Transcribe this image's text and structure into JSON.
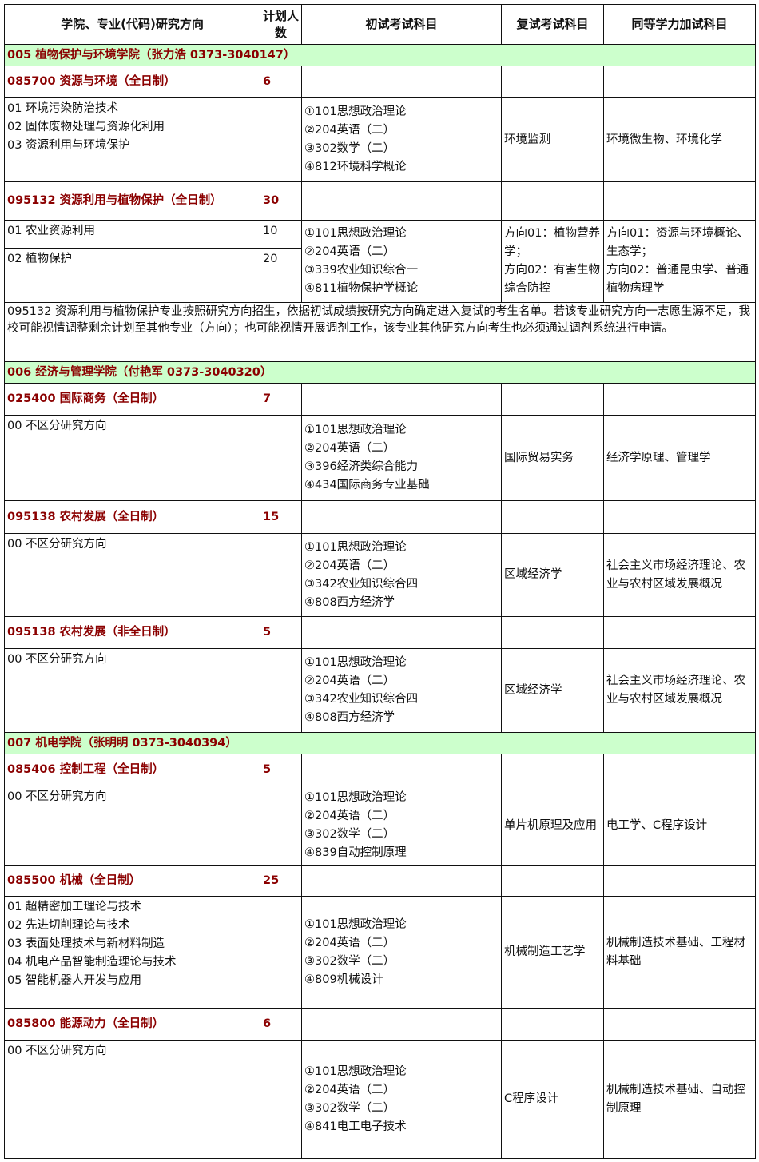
{
  "header": [
    "学院、专业(代码)研究方向",
    "计划人数",
    "初试考试科目",
    "复试考试科目",
    "同等学力加试科目"
  ],
  "colleges": [
    {
      "title": "005 植物保护与环境学院（张力浩 0373-3040147）",
      "majors": [
        {
          "title": "085700 资源与环境（全日制）",
          "plan": "6",
          "directions": [
            "01 环境污染防治技术",
            "02 固体废物处理与资源化利用",
            "03 资源利用与环境保护"
          ],
          "exams": [
            "①101思想政治理论",
            "②204英语（二）",
            "③302数学（二）",
            "④812环境科学概论"
          ],
          "retest": [
            "环境监测"
          ],
          "extra": [
            "环境微生物、环境化学"
          ]
        },
        {
          "title": "095132 资源利用与植物保护（全日制）",
          "plan": "30",
          "direction_rows": [
            {
              "name": "01 农业资源利用",
              "plan": "10"
            },
            {
              "name": "02 植物保护",
              "plan": "20"
            }
          ],
          "exams": [
            "①101思想政治理论",
            "②204英语（二）",
            "③339农业知识综合一",
            "④811植物保护学概论"
          ],
          "retest": [
            "方向01：植物营养学；",
            "方向02：有害生物综合防控"
          ],
          "extra": [
            "方向01：资源与环境概论、生态学；",
            "方向02：普通昆虫学、普通植物病理学"
          ],
          "note": "095132 资源利用与植物保护专业按照研究方向招生，依据初试成绩按研究方向确定进入复试的考生名单。若该专业研究方向一志愿生源不足，我校可能视情调整剩余计划至其他专业（方向）；也可能视情开展调剂工作，该专业其他研究方向考生也必须通过调剂系统进行申请。"
        }
      ]
    },
    {
      "title": "006 经济与管理学院（付艳军 0373-3040320）",
      "majors": [
        {
          "title": "025400 国际商务（全日制）",
          "plan": "7",
          "directions": [
            "00 不区分研究方向"
          ],
          "exams": [
            "①101思想政治理论",
            "②204英语（二）",
            "③396经济类综合能力",
            "④434国际商务专业基础"
          ],
          "retest": [
            "国际贸易实务"
          ],
          "extra": [
            "经济学原理、管理学"
          ]
        },
        {
          "title": "095138 农村发展（全日制）",
          "plan": "15",
          "directions": [
            "00 不区分研究方向"
          ],
          "exams": [
            "①101思想政治理论",
            "②204英语（二）",
            "③342农业知识综合四",
            "④808西方经济学"
          ],
          "retest": [
            "区域经济学"
          ],
          "extra": [
            "社会主义市场经济理论、农业与农村区域发展概况"
          ]
        },
        {
          "title": "095138 农村发展（非全日制）",
          "plan": "5",
          "directions": [
            "00 不区分研究方向"
          ],
          "exams": [
            "①101思想政治理论",
            "②204英语（二）",
            "③342农业知识综合四",
            "④808西方经济学"
          ],
          "retest": [
            "区域经济学"
          ],
          "extra": [
            "社会主义市场经济理论、农业与农村区域发展概况"
          ]
        }
      ]
    },
    {
      "title": "007 机电学院（张明明 0373-3040394）",
      "majors": [
        {
          "title": "085406 控制工程（全日制）",
          "plan": "5",
          "directions": [
            "00 不区分研究方向"
          ],
          "exams": [
            "①101思想政治理论",
            "②204英语（二）",
            "③302数学（二）",
            "④839自动控制原理"
          ],
          "retest": [
            "单片机原理及应用"
          ],
          "extra": [
            "电工学、C程序设计"
          ]
        },
        {
          "title": "085500 机械（全日制）",
          "plan": "25",
          "directions": [
            "01 超精密加工理论与技术",
            "02 先进切削理论与技术",
            "03 表面处理技术与新材料制造",
            "04 机电产品智能制造理论与技术",
            "05 智能机器人开发与应用"
          ],
          "exams": [
            "①101思想政治理论",
            "②204英语（二）",
            "③302数学（二）",
            "④809机械设计"
          ],
          "retest": [
            "机械制造工艺学"
          ],
          "extra": [
            "机械制造技术基础、工程材料基础"
          ]
        },
        {
          "title": "085800 能源动力（全日制）",
          "plan": "6",
          "directions": [
            "00 不区分研究方向"
          ],
          "exams": [
            "①101思想政治理论",
            "②204英语（二）",
            "③302数学（二）",
            "④841电工电子技术"
          ],
          "retest": [
            "C程序设计"
          ],
          "extra": [
            "机械制造技术基础、自动控制原理"
          ]
        }
      ]
    }
  ],
  "colors": {
    "college_bg": "#ccffcc",
    "major_text": "#8b0000"
  }
}
